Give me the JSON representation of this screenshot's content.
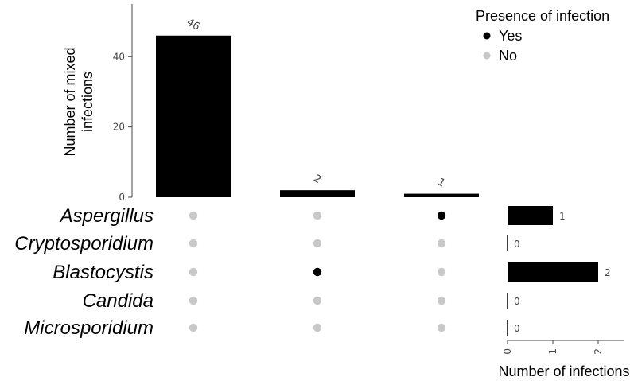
{
  "chart_data": {
    "type": "upset",
    "sets": [
      "Aspergillus",
      "Cryptosporidium",
      "Blastocystis",
      "Candida",
      "Microsporidium"
    ],
    "intersections": [
      {
        "label": "46",
        "value": 46,
        "members": [
          false,
          false,
          false,
          false,
          false
        ]
      },
      {
        "label": "2",
        "value": 2,
        "members": [
          false,
          false,
          true,
          false,
          false
        ]
      },
      {
        "label": "1",
        "value": 1,
        "members": [
          true,
          false,
          false,
          false,
          false
        ]
      }
    ],
    "intersection_axis": {
      "title_lines": [
        "Number of mixed",
        "infections"
      ],
      "ylim": [
        0,
        55
      ],
      "ticks": [
        0,
        20,
        40
      ],
      "tick_labels": [
        "0",
        "20",
        "40"
      ]
    },
    "set_sizes": [
      {
        "set": "Aspergillus",
        "value": 1,
        "label": "1"
      },
      {
        "set": "Cryptosporidium",
        "value": 0,
        "label": "0"
      },
      {
        "set": "Blastocystis",
        "value": 2,
        "label": "2"
      },
      {
        "set": "Candida",
        "value": 0,
        "label": "0"
      },
      {
        "set": "Microsporidium",
        "value": 0,
        "label": "0"
      }
    ],
    "set_size_axis": {
      "title": "Number of infections",
      "xlim": [
        0,
        2.6
      ],
      "ticks": [
        0,
        1,
        2
      ],
      "tick_labels": [
        "0",
        "1",
        "2"
      ]
    },
    "legend": {
      "title": "Presence of infection",
      "placement": "top-right",
      "items": [
        {
          "label": "Yes",
          "color": "#000000"
        },
        {
          "label": "No",
          "color": "#c8c8c8"
        }
      ]
    },
    "colors": {
      "bar": "#000000",
      "present": "#000000",
      "absent": "#c8c8c8",
      "axis": "#444444"
    }
  }
}
